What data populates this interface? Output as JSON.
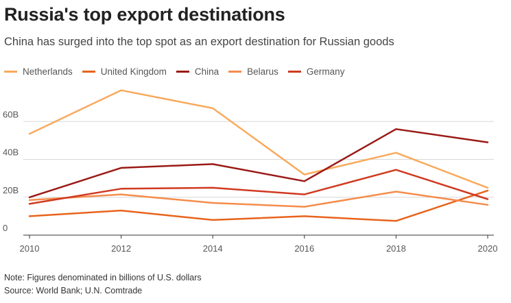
{
  "chart_data": {
    "type": "line",
    "title": "Russia's top export destinations",
    "subtitle": "China has surged into the top spot as an export destination for Russian goods",
    "xlabel": "",
    "ylabel": "",
    "x": [
      2010,
      2012,
      2014,
      2016,
      2018,
      2020
    ],
    "x_ticks": [
      "2010",
      "2012",
      "2014",
      "2016",
      "2018",
      "2020"
    ],
    "y_ticks": [
      {
        "value": 0,
        "label": "0"
      },
      {
        "value": 20,
        "label": "20B"
      },
      {
        "value": 40,
        "label": "40B"
      },
      {
        "value": 60,
        "label": "60B"
      }
    ],
    "ylim": [
      0,
      80
    ],
    "grid": true,
    "legend_position": "top-left",
    "series": [
      {
        "name": "Netherlands",
        "color": "#f9a95c",
        "values": [
          53.5,
          76.5,
          67,
          32,
          43.5,
          25
        ]
      },
      {
        "name": "United Kingdom",
        "color": "#e8631c",
        "values": [
          10,
          13,
          8,
          10,
          7.5,
          23.5
        ]
      },
      {
        "name": "China",
        "color": "#9a1a16",
        "values": [
          20,
          35.5,
          37.5,
          28.5,
          56,
          49
        ]
      },
      {
        "name": "Belarus",
        "color": "#f58c4c",
        "values": [
          18.5,
          21.5,
          17,
          15,
          23,
          16
        ]
      },
      {
        "name": "Germany",
        "color": "#cf3a1f",
        "values": [
          16.5,
          24.5,
          25,
          21.5,
          34.5,
          19
        ]
      }
    ]
  },
  "footer": {
    "note": "Note: Figures denominated in billions of U.S. dollars",
    "source": "Source: World Bank; U.N. Comtrade"
  }
}
